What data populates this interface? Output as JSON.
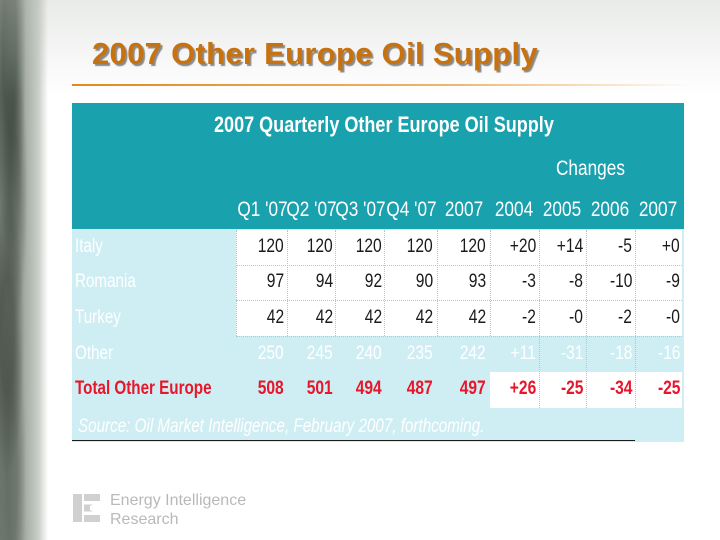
{
  "slide_title": "2007 Other Europe Oil Supply",
  "table": {
    "title": "2007 Quarterly Other Europe Oil Supply",
    "changes_label": "Changes",
    "columns": [
      "Q1 '07",
      "Q2 '07",
      "Q3 '07",
      "Q4 '07",
      "2007",
      "2004",
      "2005",
      "2006",
      "2007"
    ],
    "rows": [
      {
        "label": "Italy",
        "values": [
          "120",
          "120",
          "120",
          "120",
          "120",
          "+20",
          "+14",
          "-5",
          "+0"
        ]
      },
      {
        "label": "Romania",
        "values": [
          "97",
          "94",
          "92",
          "90",
          "93",
          "-3",
          "-8",
          "-10",
          "-9"
        ]
      },
      {
        "label": "Turkey",
        "values": [
          "42",
          "42",
          "42",
          "42",
          "42",
          "-2",
          "-0",
          "-2",
          "-0"
        ]
      },
      {
        "label": "Other",
        "values": [
          "250",
          "245",
          "240",
          "235",
          "242",
          "+11",
          "-31",
          "-18",
          "-16"
        ]
      },
      {
        "label": "Total Other Europe",
        "values": [
          "508",
          "501",
          "494",
          "487",
          "497",
          "+26",
          "-25",
          "-34",
          "-25"
        ]
      }
    ],
    "source_prefix": "Source:",
    "source_text": "Oil Market Intelligence, February 2007, forthcoming."
  },
  "logo": {
    "line1": "Energy Intelligence",
    "line2": "Research"
  },
  "colors": {
    "title": "#c8720f",
    "header_band": "#1aa1ae",
    "panel": "#cfeef3",
    "total_row": "#e8162a"
  }
}
